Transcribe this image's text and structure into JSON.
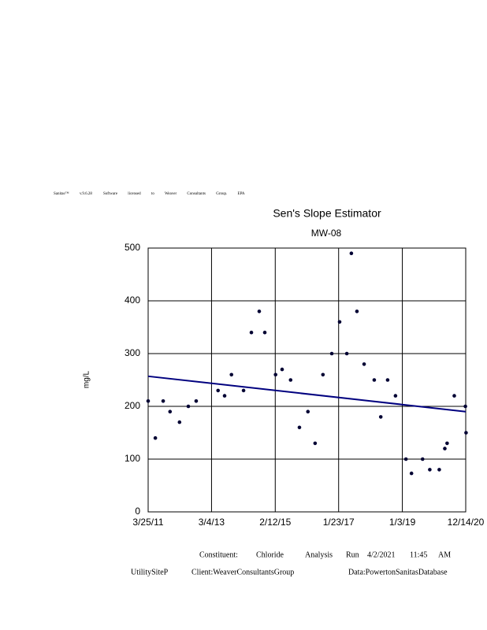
{
  "header": {
    "software": "Sanitas™",
    "version": "v.9.6.28",
    "license": "Software licensed to Weaver Consultants Group. EPA"
  },
  "chart_data": {
    "type": "scatter",
    "title": "Sen's Slope Estimator",
    "subtitle": "MW-08",
    "y_label": "mg/L",
    "x": [
      2011.23,
      2011.45,
      2011.69,
      2011.9,
      2012.19,
      2012.46,
      2012.7,
      2013.37,
      2013.57,
      2013.78,
      2014.15,
      2014.39,
      2014.63,
      2014.8,
      2015.13,
      2015.33,
      2015.59,
      2015.86,
      2016.12,
      2016.34,
      2016.58,
      2016.85,
      2017.09,
      2017.31,
      2017.45,
      2017.62,
      2017.84,
      2018.15,
      2018.35,
      2018.56,
      2018.8,
      2019.12,
      2019.29,
      2019.63,
      2019.85,
      2020.14,
      2020.31,
      2020.38,
      2020.6,
      2020.94,
      2020.96
    ],
    "values": [
      210,
      140,
      210,
      190,
      170,
      200,
      210,
      230,
      220,
      260,
      230,
      340,
      380,
      340,
      260,
      270,
      250,
      160,
      190,
      130,
      260,
      300,
      360,
      300,
      490,
      380,
      280,
      250,
      180,
      250,
      220,
      100,
      73,
      100,
      80,
      80,
      120,
      130,
      220,
      200,
      150
    ],
    "color": "#000033",
    "trend": {
      "x": [
        2011.23,
        2020.95
      ],
      "values": [
        257,
        190
      ],
      "color": "#00007f"
    },
    "xlim": [
      2011.23,
      2020.95
    ],
    "ylim": [
      0,
      500
    ],
    "xticks": [
      {
        "value": 2011.23,
        "label": "3/25/11"
      },
      {
        "value": 2013.17,
        "label": "3/4/13"
      },
      {
        "value": 2015.12,
        "label": "2/12/15"
      },
      {
        "value": 2017.06,
        "label": "1/23/17"
      },
      {
        "value": 2019.01,
        "label": "1/3/19"
      },
      {
        "value": 2020.95,
        "label": "12/14/20"
      }
    ],
    "yticks": [
      0,
      100,
      200,
      300,
      400,
      500
    ],
    "grid": true
  },
  "footer": {
    "constituent": "Constituent:",
    "name": "Chloride",
    "analysis": "Analysis",
    "run": "Run",
    "date": "4/2/2021",
    "time": "11:45",
    "ampm": "AM",
    "site": "UtilitySiteP",
    "client": "Client:WeaverConsultantsGroup",
    "data": "Data:PowertonSanitasDatabase"
  }
}
